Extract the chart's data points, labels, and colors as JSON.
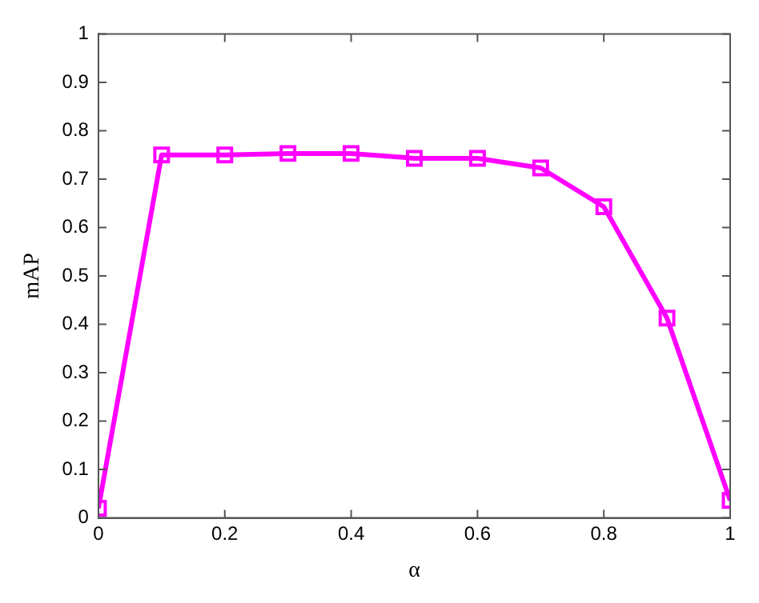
{
  "chart_data": {
    "type": "line",
    "xlabel": "α",
    "ylabel": "mAP",
    "x": [
      0,
      0.1,
      0.2,
      0.3,
      0.4,
      0.5,
      0.6,
      0.7,
      0.8,
      0.9,
      1
    ],
    "series": [
      {
        "color": "#ff00ff",
        "values": [
          0.02,
          0.75,
          0.75,
          0.753,
          0.753,
          0.743,
          0.743,
          0.723,
          0.643,
          0.413,
          0.036
        ]
      }
    ],
    "xlim": [
      0,
      1
    ],
    "xticks": [
      0,
      0.2,
      0.4,
      0.6,
      0.8,
      1
    ],
    "ylim": [
      0,
      1
    ],
    "yticks": [
      0,
      0.1,
      0.2,
      0.3,
      0.4,
      0.5,
      0.6,
      0.7,
      0.8,
      0.9,
      1
    ],
    "grid": false,
    "legend": false,
    "marker": "square",
    "line_style": "solid"
  }
}
